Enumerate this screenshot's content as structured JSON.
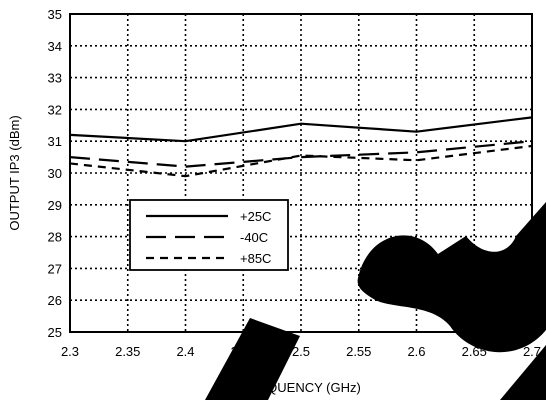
{
  "chart_data": {
    "type": "line",
    "title": "",
    "xlabel": "FREQUENCY (GHz)",
    "ylabel": "OUTPUT IP3 (dBm)",
    "xlim": [
      2.3,
      2.7
    ],
    "ylim": [
      25,
      35
    ],
    "x_ticks": [
      "2.3",
      "2.35",
      "2.4",
      "2.45",
      "2.5",
      "2.55",
      "2.6",
      "2.65",
      "2.7"
    ],
    "y_ticks": [
      "25",
      "26",
      "27",
      "28",
      "29",
      "30",
      "31",
      "32",
      "33",
      "34",
      "35"
    ],
    "grid": true,
    "legend_position": "left-middle",
    "series": [
      {
        "name": "+25C",
        "style": "solid",
        "x": [
          2.3,
          2.4,
          2.5,
          2.6,
          2.7
        ],
        "values": [
          31.2,
          31.0,
          31.55,
          31.3,
          31.75
        ]
      },
      {
        "name": "-40C",
        "style": "long-dash",
        "x": [
          2.3,
          2.4,
          2.5,
          2.6,
          2.7
        ],
        "values": [
          30.5,
          30.2,
          30.5,
          30.65,
          31.0
        ]
      },
      {
        "name": "+85C",
        "style": "short-dash",
        "x": [
          2.3,
          2.4,
          2.5,
          2.6,
          2.7
        ],
        "values": [
          30.3,
          29.9,
          30.55,
          30.4,
          30.85
        ]
      }
    ]
  },
  "watermark": {
    "color": "#000000"
  }
}
